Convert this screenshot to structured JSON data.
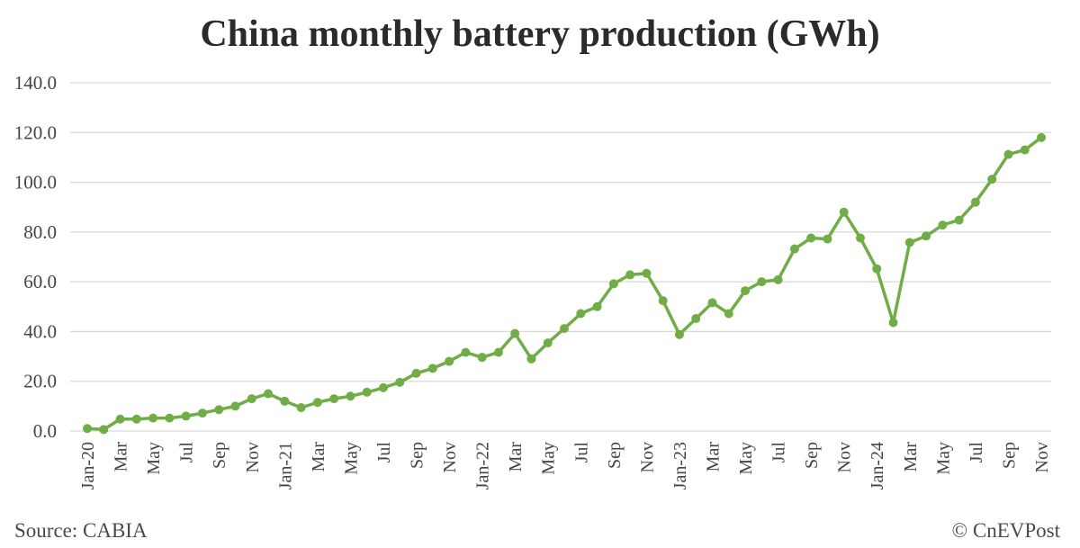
{
  "chart_data": {
    "type": "line",
    "title": "China monthly battery production (GWh)",
    "xlabel": "",
    "ylabel": "",
    "ylim": [
      0,
      140
    ],
    "yticks": [
      "0.0",
      "20.0",
      "40.0",
      "60.0",
      "80.0",
      "100.0",
      "120.0",
      "140.0"
    ],
    "grid": "horizontal",
    "color": "#70ad47",
    "x": [
      "Jan-20",
      "Feb-20",
      "Mar-20",
      "Apr-20",
      "May-20",
      "Jun-20",
      "Jul-20",
      "Aug-20",
      "Sep-20",
      "Oct-20",
      "Nov-20",
      "Dec-20",
      "Jan-21",
      "Feb-21",
      "Mar-21",
      "Apr-21",
      "May-21",
      "Jun-21",
      "Jul-21",
      "Aug-21",
      "Sep-21",
      "Oct-21",
      "Nov-21",
      "Dec-21",
      "Jan-22",
      "Feb-22",
      "Mar-22",
      "Apr-22",
      "May-22",
      "Jun-22",
      "Jul-22",
      "Aug-22",
      "Sep-22",
      "Oct-22",
      "Nov-22",
      "Dec-22",
      "Jan-23",
      "Feb-23",
      "Mar-23",
      "Apr-23",
      "May-23",
      "Jun-23",
      "Jul-23",
      "Aug-23",
      "Sep-23",
      "Oct-23",
      "Nov-23",
      "Dec-23",
      "Jan-24",
      "Feb-24",
      "Mar-24",
      "Apr-24",
      "May-24",
      "Jun-24",
      "Jul-24",
      "Aug-24",
      "Sep-24",
      "Oct-24",
      "Nov-24"
    ],
    "xtick_labels": [
      "Jan-20",
      "",
      "Mar",
      "",
      "May",
      "",
      "Jul",
      "",
      "Sep",
      "",
      "Nov",
      "",
      "Jan-21",
      "",
      "Mar",
      "",
      "May",
      "",
      "Jul",
      "",
      "Sep",
      "",
      "Nov",
      "",
      "Jan-22",
      "",
      "Mar",
      "",
      "May",
      "",
      "Jul",
      "",
      "Sep",
      "",
      "Nov",
      "",
      "Jan-23",
      "",
      "Mar",
      "",
      "May",
      "",
      "Jul",
      "",
      "Sep",
      "",
      "Nov",
      "",
      "Jan-24",
      "",
      "Mar",
      "",
      "May",
      "",
      "Jul",
      "",
      "Sep",
      "",
      "Nov"
    ],
    "values": [
      1.0,
      0.6,
      4.8,
      4.8,
      5.2,
      5.2,
      6.0,
      7.2,
      8.6,
      10.0,
      13.0,
      15.0,
      12.0,
      9.4,
      11.5,
      13.0,
      14.0,
      15.6,
      17.4,
      19.6,
      23.2,
      25.2,
      28.0,
      31.6,
      29.6,
      31.6,
      39.2,
      29.0,
      35.4,
      41.2,
      47.2,
      50.0,
      59.2,
      62.8,
      63.4,
      52.4,
      38.8,
      45.2,
      51.6,
      47.2,
      56.4,
      60.0,
      60.8,
      73.2,
      77.6,
      77.2,
      88.0,
      77.6,
      65.2,
      43.6,
      75.8,
      78.4,
      82.8,
      84.8,
      92.0,
      101.2,
      111.2,
      113.0,
      118.0
    ]
  },
  "footer": {
    "source": "Source: CABIA",
    "credit": "© CnEVPost"
  }
}
